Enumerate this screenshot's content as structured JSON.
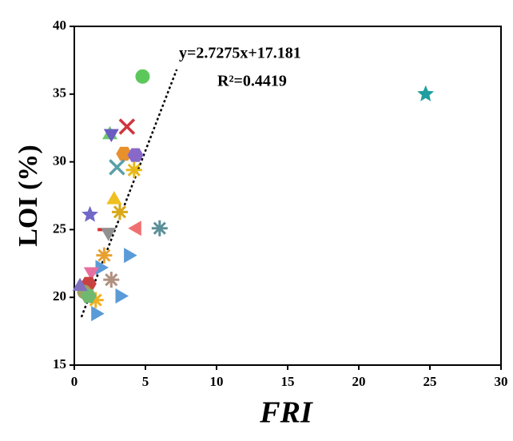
{
  "chart_data": {
    "type": "scatter",
    "xlabel": "FRI",
    "ylabel": "LOI (%)",
    "annotations": [
      "y=2.7275x+17.181",
      "R²=0.4419"
    ],
    "fit": {
      "slope": 2.7275,
      "intercept": 17.181,
      "x": [
        0.5,
        7.2
      ]
    },
    "xlim": [
      0,
      30
    ],
    "xticks": [
      0,
      5,
      10,
      15,
      20,
      25,
      30
    ],
    "ylim": [
      15,
      40
    ],
    "yticks": [
      15,
      20,
      25,
      30,
      35,
      40
    ],
    "x": [
      4.8,
      24.7,
      3.7,
      2.5,
      2.6,
      3.5,
      4.3,
      3.0,
      4.2,
      2.8,
      3.2,
      1.1,
      4.4,
      6.0,
      2.2,
      2.4,
      3.8,
      2.1,
      1.8,
      2.6,
      1.2,
      1.0,
      3.2,
      1.5,
      1.5,
      0.7,
      1.0,
      0.4
    ],
    "values": [
      36.3,
      35.0,
      32.6,
      32.0,
      32.1,
      30.6,
      30.5,
      29.6,
      29.4,
      27.2,
      26.3,
      26.1,
      25.1,
      25.1,
      25.0,
      24.8,
      23.1,
      23.1,
      22.2,
      21.3,
      21.9,
      21.0,
      20.1,
      19.8,
      18.8,
      20.4,
      20.1,
      20.8
    ],
    "markers": [
      "circle",
      "star",
      "x",
      "triangle-up",
      "triangle-down",
      "hexagon",
      "hexagon",
      "x",
      "asterisk",
      "triangle-up",
      "asterisk",
      "star",
      "triangle-left",
      "asterisk",
      "dash",
      "triangle-down",
      "triangle-right",
      "asterisk",
      "triangle-right",
      "asterisk",
      "triangle-down",
      "hexagon",
      "triangle-right",
      "asterisk",
      "triangle-right",
      "circle",
      "hexagon",
      "triangle-up"
    ],
    "colors": [
      "#5cc85c",
      "#1e9e9e",
      "#d0343c",
      "#6cc86c",
      "#6a5cc0",
      "#e8902c",
      "#8868c8",
      "#5aa0a8",
      "#e8b818",
      "#f0c020",
      "#d8a818",
      "#7068c8",
      "#f07070",
      "#5a9098",
      "#d83030",
      "#909090",
      "#5a9ad8",
      "#e8a030",
      "#5a9ad8",
      "#b09080",
      "#e870a0",
      "#c84040",
      "#5a9ad8",
      "#f0b020",
      "#5a9ad8",
      "#a0a060",
      "#70b870",
      "#8070c0"
    ]
  }
}
